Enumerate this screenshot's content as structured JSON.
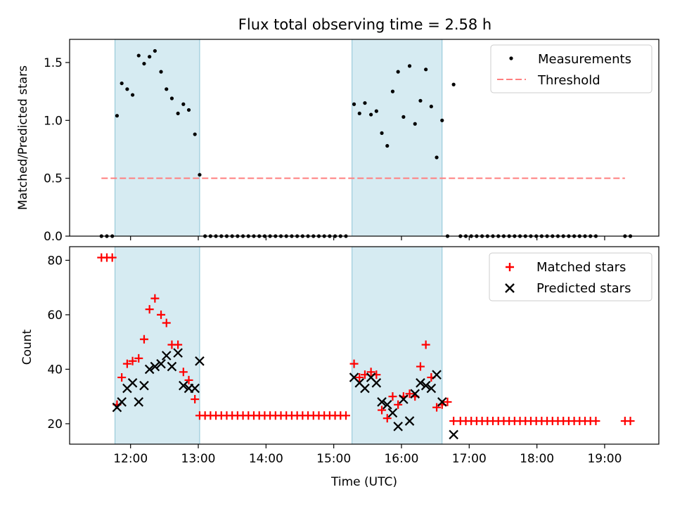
{
  "chart_data": [
    {
      "type": "scatter",
      "title": "Flux total observing time = 2.58 h",
      "xlabel": "",
      "ylabel": "Matched/Predicted stars",
      "xlim_hours": [
        11.1,
        19.8
      ],
      "ylim": [
        0,
        1.7
      ],
      "yticks": [
        "0.0",
        "0.5",
        "1.0",
        "1.5"
      ],
      "grid": false,
      "legend_position": "top-right",
      "shaded_intervals_hours": [
        [
          11.77,
          13.02
        ],
        [
          15.27,
          16.6
        ]
      ],
      "legend": {
        "measurements": "Measurements",
        "threshold": "Threshold"
      },
      "threshold": {
        "name": "Threshold",
        "y": 0.5,
        "x_range_hours": [
          11.57,
          19.3
        ],
        "color": "#ff7f7f"
      },
      "series": [
        {
          "name": "Measurements",
          "color": "#000000",
          "points": [
            [
              11.57,
              0
            ],
            [
              11.65,
              0
            ],
            [
              11.73,
              0
            ],
            [
              11.8,
              1.04
            ],
            [
              11.87,
              1.32
            ],
            [
              11.95,
              1.27
            ],
            [
              12.03,
              1.22
            ],
            [
              12.12,
              1.56
            ],
            [
              12.2,
              1.49
            ],
            [
              12.28,
              1.55
            ],
            [
              12.36,
              1.6
            ],
            [
              12.45,
              1.42
            ],
            [
              12.53,
              1.27
            ],
            [
              12.61,
              1.19
            ],
            [
              12.7,
              1.06
            ],
            [
              12.78,
              1.14
            ],
            [
              12.86,
              1.09
            ],
            [
              12.95,
              0.88
            ],
            [
              13.02,
              0.53
            ],
            [
              13.1,
              0
            ],
            [
              13.18,
              0
            ],
            [
              13.26,
              0
            ],
            [
              13.34,
              0
            ],
            [
              13.42,
              0
            ],
            [
              13.5,
              0
            ],
            [
              13.58,
              0
            ],
            [
              13.66,
              0
            ],
            [
              13.74,
              0
            ],
            [
              13.82,
              0
            ],
            [
              13.9,
              0
            ],
            [
              13.98,
              0
            ],
            [
              14.06,
              0
            ],
            [
              14.14,
              0
            ],
            [
              14.22,
              0
            ],
            [
              14.3,
              0
            ],
            [
              14.38,
              0
            ],
            [
              14.46,
              0
            ],
            [
              14.54,
              0
            ],
            [
              14.62,
              0
            ],
            [
              14.7,
              0
            ],
            [
              14.78,
              0
            ],
            [
              14.86,
              0
            ],
            [
              14.94,
              0
            ],
            [
              15.02,
              0
            ],
            [
              15.1,
              0
            ],
            [
              15.18,
              0
            ],
            [
              15.3,
              1.14
            ],
            [
              15.38,
              1.06
            ],
            [
              15.46,
              1.15
            ],
            [
              15.55,
              1.05
            ],
            [
              15.63,
              1.08
            ],
            [
              15.71,
              0.89
            ],
            [
              15.79,
              0.78
            ],
            [
              15.87,
              1.25
            ],
            [
              15.95,
              1.42
            ],
            [
              16.03,
              1.03
            ],
            [
              16.12,
              1.47
            ],
            [
              16.2,
              0.97
            ],
            [
              16.28,
              1.17
            ],
            [
              16.36,
              1.44
            ],
            [
              16.44,
              1.12
            ],
            [
              16.52,
              0.68
            ],
            [
              16.6,
              1.0
            ],
            [
              16.68,
              0
            ],
            [
              16.77,
              1.31
            ],
            [
              16.87,
              0
            ],
            [
              16.95,
              0
            ],
            [
              17.03,
              0
            ],
            [
              17.11,
              0
            ],
            [
              17.19,
              0
            ],
            [
              17.27,
              0
            ],
            [
              17.35,
              0
            ],
            [
              17.43,
              0
            ],
            [
              17.51,
              0
            ],
            [
              17.59,
              0
            ],
            [
              17.67,
              0
            ],
            [
              17.75,
              0
            ],
            [
              17.83,
              0
            ],
            [
              17.91,
              0
            ],
            [
              17.99,
              0
            ],
            [
              18.07,
              0
            ],
            [
              18.15,
              0
            ],
            [
              18.23,
              0
            ],
            [
              18.31,
              0
            ],
            [
              18.39,
              0
            ],
            [
              18.47,
              0
            ],
            [
              18.55,
              0
            ],
            [
              18.63,
              0
            ],
            [
              18.71,
              0
            ],
            [
              18.79,
              0
            ],
            [
              18.87,
              0
            ],
            [
              19.3,
              0
            ],
            [
              19.38,
              0
            ]
          ]
        }
      ]
    },
    {
      "type": "scatter",
      "title": "",
      "xlabel": "Time (UTC)",
      "ylabel": "Count",
      "xlim_hours": [
        11.1,
        19.8
      ],
      "ylim": [
        12.5,
        85
      ],
      "yticks": [
        "20",
        "40",
        "60",
        "80"
      ],
      "xticks": [
        {
          "h": 12,
          "label": "12:00"
        },
        {
          "h": 13,
          "label": "13:00"
        },
        {
          "h": 14,
          "label": "14:00"
        },
        {
          "h": 15,
          "label": "15:00"
        },
        {
          "h": 16,
          "label": "16:00"
        },
        {
          "h": 17,
          "label": "17:00"
        },
        {
          "h": 18,
          "label": "18:00"
        },
        {
          "h": 19,
          "label": "19:00"
        }
      ],
      "grid": false,
      "legend_position": "top-right",
      "shaded_intervals_hours": [
        [
          11.77,
          13.02
        ],
        [
          15.27,
          16.6
        ]
      ],
      "legend": {
        "matched": "Matched stars",
        "predicted": "Predicted stars"
      },
      "series": [
        {
          "name": "Matched stars",
          "marker": "+",
          "color": "#ff0000",
          "points": [
            [
              11.57,
              81
            ],
            [
              11.65,
              81
            ],
            [
              11.73,
              81
            ],
            [
              11.8,
              27
            ],
            [
              11.87,
              37
            ],
            [
              11.95,
              42
            ],
            [
              12.03,
              43
            ],
            [
              12.12,
              44
            ],
            [
              12.2,
              51
            ],
            [
              12.28,
              62
            ],
            [
              12.36,
              66
            ],
            [
              12.45,
              60
            ],
            [
              12.53,
              57
            ],
            [
              12.61,
              49
            ],
            [
              12.7,
              49
            ],
            [
              12.78,
              39
            ],
            [
              12.86,
              36
            ],
            [
              12.95,
              29
            ],
            [
              13.02,
              23
            ],
            [
              13.1,
              23
            ],
            [
              13.18,
              23
            ],
            [
              13.26,
              23
            ],
            [
              13.34,
              23
            ],
            [
              13.42,
              23
            ],
            [
              13.5,
              23
            ],
            [
              13.58,
              23
            ],
            [
              13.66,
              23
            ],
            [
              13.74,
              23
            ],
            [
              13.82,
              23
            ],
            [
              13.9,
              23
            ],
            [
              13.98,
              23
            ],
            [
              14.06,
              23
            ],
            [
              14.14,
              23
            ],
            [
              14.22,
              23
            ],
            [
              14.3,
              23
            ],
            [
              14.38,
              23
            ],
            [
              14.46,
              23
            ],
            [
              14.54,
              23
            ],
            [
              14.62,
              23
            ],
            [
              14.7,
              23
            ],
            [
              14.78,
              23
            ],
            [
              14.86,
              23
            ],
            [
              14.94,
              23
            ],
            [
              15.02,
              23
            ],
            [
              15.1,
              23
            ],
            [
              15.18,
              23
            ],
            [
              15.3,
              42
            ],
            [
              15.38,
              37
            ],
            [
              15.46,
              38
            ],
            [
              15.55,
              39
            ],
            [
              15.63,
              38
            ],
            [
              15.71,
              25
            ],
            [
              15.79,
              22
            ],
            [
              15.87,
              30
            ],
            [
              15.95,
              27
            ],
            [
              16.03,
              30
            ],
            [
              16.12,
              31
            ],
            [
              16.2,
              30
            ],
            [
              16.28,
              41
            ],
            [
              16.36,
              49
            ],
            [
              16.44,
              37
            ],
            [
              16.52,
              26
            ],
            [
              16.6,
              27
            ],
            [
              16.68,
              28
            ],
            [
              16.77,
              21
            ],
            [
              16.87,
              21
            ],
            [
              16.95,
              21
            ],
            [
              17.03,
              21
            ],
            [
              17.11,
              21
            ],
            [
              17.19,
              21
            ],
            [
              17.27,
              21
            ],
            [
              17.35,
              21
            ],
            [
              17.43,
              21
            ],
            [
              17.51,
              21
            ],
            [
              17.59,
              21
            ],
            [
              17.67,
              21
            ],
            [
              17.75,
              21
            ],
            [
              17.83,
              21
            ],
            [
              17.91,
              21
            ],
            [
              17.99,
              21
            ],
            [
              18.07,
              21
            ],
            [
              18.15,
              21
            ],
            [
              18.23,
              21
            ],
            [
              18.31,
              21
            ],
            [
              18.39,
              21
            ],
            [
              18.47,
              21
            ],
            [
              18.55,
              21
            ],
            [
              18.63,
              21
            ],
            [
              18.71,
              21
            ],
            [
              18.79,
              21
            ],
            [
              18.87,
              21
            ],
            [
              19.3,
              21
            ],
            [
              19.38,
              21
            ]
          ]
        },
        {
          "name": "Predicted stars",
          "marker": "x",
          "color": "#000000",
          "points": [
            [
              11.8,
              26
            ],
            [
              11.87,
              28
            ],
            [
              11.95,
              33
            ],
            [
              12.03,
              35
            ],
            [
              12.12,
              28
            ],
            [
              12.2,
              34
            ],
            [
              12.28,
              40
            ],
            [
              12.36,
              41
            ],
            [
              12.45,
              42
            ],
            [
              12.53,
              45
            ],
            [
              12.61,
              41
            ],
            [
              12.7,
              46
            ],
            [
              12.78,
              34
            ],
            [
              12.86,
              33
            ],
            [
              12.95,
              33
            ],
            [
              13.02,
              43
            ],
            [
              15.3,
              37
            ],
            [
              15.38,
              35
            ],
            [
              15.46,
              33
            ],
            [
              15.55,
              37
            ],
            [
              15.63,
              35
            ],
            [
              15.71,
              28
            ],
            [
              15.79,
              27
            ],
            [
              15.87,
              24
            ],
            [
              15.95,
              19
            ],
            [
              16.03,
              29
            ],
            [
              16.12,
              21
            ],
            [
              16.2,
              31
            ],
            [
              16.28,
              35
            ],
            [
              16.36,
              34
            ],
            [
              16.44,
              33
            ],
            [
              16.52,
              38
            ],
            [
              16.6,
              28
            ],
            [
              16.77,
              16
            ]
          ]
        }
      ]
    }
  ]
}
